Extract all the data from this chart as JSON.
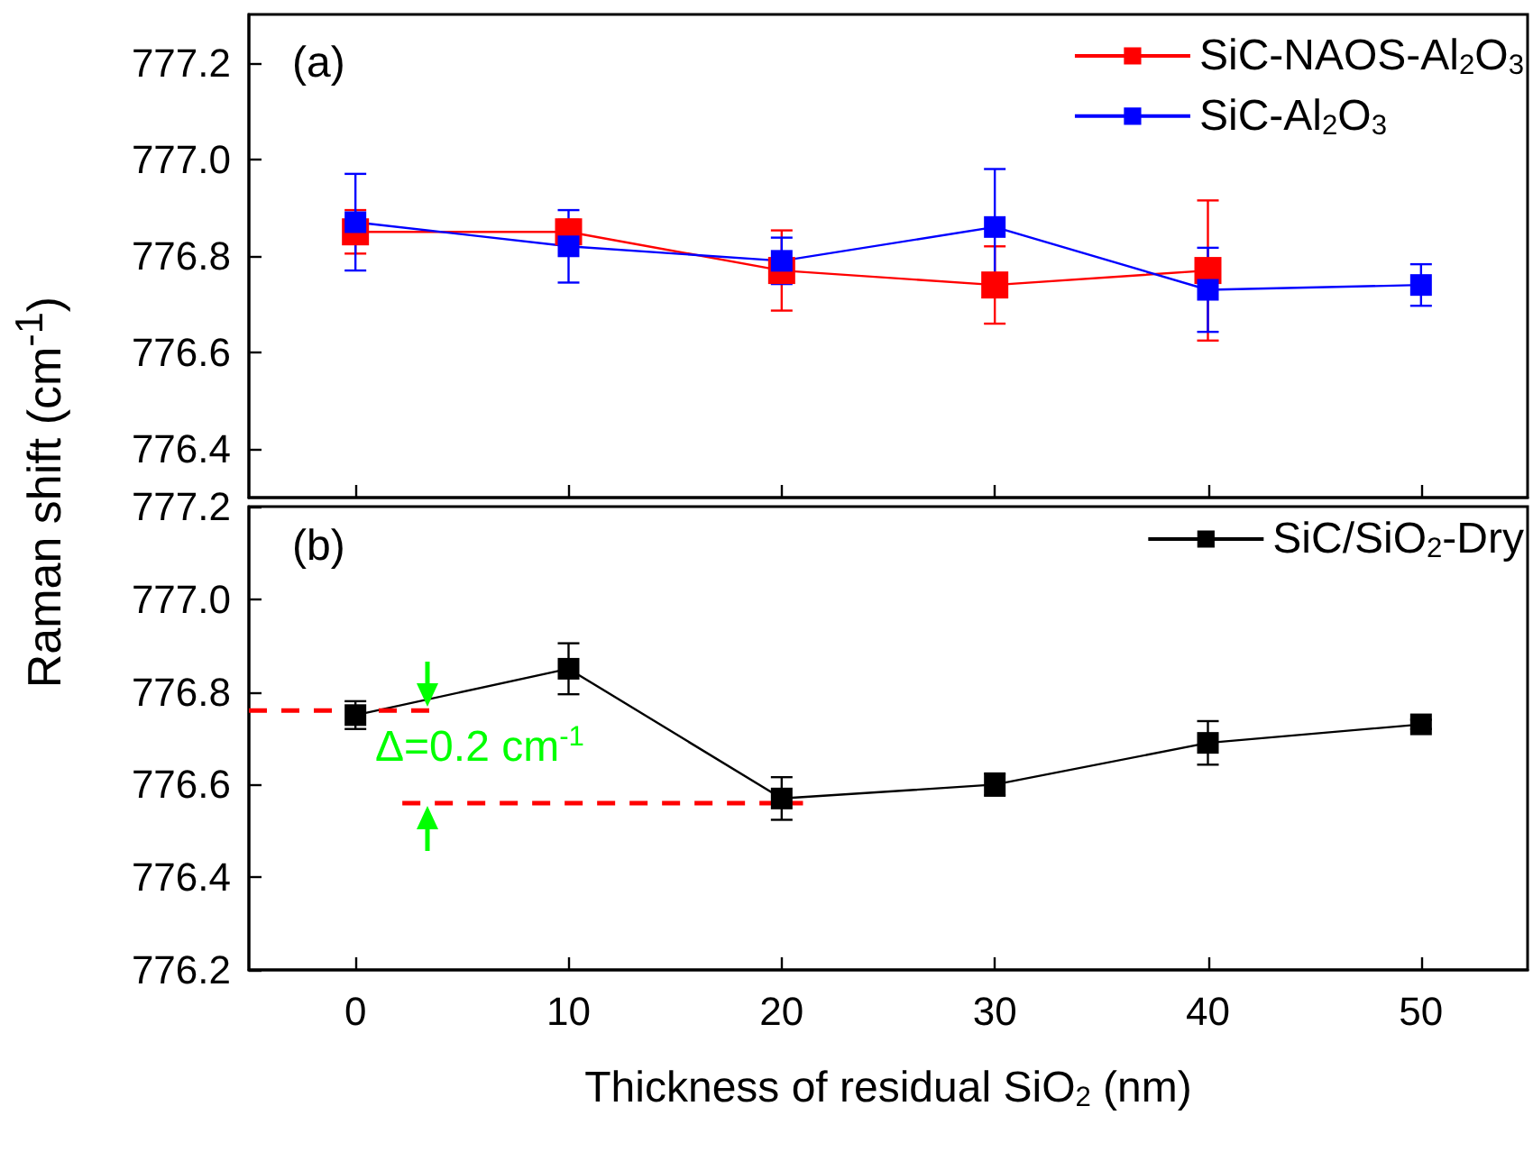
{
  "chart_data": [
    {
      "type": "line",
      "ylabel": "Raman shift (cm$^{-1}$)",
      "annotations": [
        "(a)"
      ],
      "x": [
        0,
        10,
        20,
        30,
        40,
        50
      ],
      "xlim": [
        -5,
        55
      ],
      "xticks": [
        0,
        10,
        20,
        30,
        40,
        50
      ],
      "ylim": [
        776.3,
        777.3
      ],
      "yticks": [
        776.4,
        776.6,
        776.8,
        {
          "value": 777,
          "label": "777.0"
        },
        777.2
      ],
      "tick_labels": "y",
      "legend": "top right",
      "marker": "square",
      "line_style": "solid",
      "series": [
        {
          "name": "SiC-NAOS-Al$_{2}$O$_{3}$",
          "color": "#ff0000",
          "values": [
            776.85,
            776.85,
            776.77,
            776.74,
            776.77,
            null
          ],
          "errors": [
            0.045,
            0.025,
            0.083,
            0.08,
            0.145,
            null
          ]
        },
        {
          "name": "SiC-Al$_{2}$O$_{3}$",
          "color": "#0000ff",
          "values": [
            776.87,
            776.82,
            776.79,
            776.86,
            776.73,
            776.74
          ],
          "errors": [
            0.1,
            0.075,
            0.048,
            0.12,
            0.087,
            0.043
          ]
        }
      ]
    },
    {
      "type": "line",
      "xlabel": "Thickness of residual SiO$_{2}$ (nm)",
      "annotations": [
        "(b)",
        "Δ=0.2 cm$^{-1}$"
      ],
      "x": [
        0,
        10,
        20,
        30,
        40,
        50
      ],
      "xlim": [
        -5,
        55
      ],
      "xticks": [
        0,
        10,
        20,
        30,
        40,
        50
      ],
      "ylim": [
        776.2,
        777.2
      ],
      "yticks": [
        776.2,
        776.4,
        776.6,
        776.8,
        {
          "value": 777,
          "label": "777.0"
        },
        777.2
      ],
      "legend": "top right",
      "marker": "square",
      "line_style": "solid",
      "series": [
        {
          "name": "SiC/SiO$_{2}$-Dry",
          "color": "#000000",
          "values": [
            776.75,
            776.85,
            776.57,
            776.6,
            776.69,
            776.73
          ],
          "errors": [
            0.03,
            0.055,
            0.046,
            0.024,
            0.047,
            0.01
          ]
        },
        {
          "type": "line",
          "x": [
            -5,
            3.5
          ],
          "values": [
            776.76,
            776.76
          ],
          "color": "#ff0000",
          "line_style": "dashed",
          "marker": "none"
        },
        {
          "type": "line",
          "x": [
            2.2,
            21
          ],
          "values": [
            776.56,
            776.56
          ],
          "color": "#ff0000",
          "line_style": "dashed",
          "marker": "none"
        }
      ]
    }
  ]
}
